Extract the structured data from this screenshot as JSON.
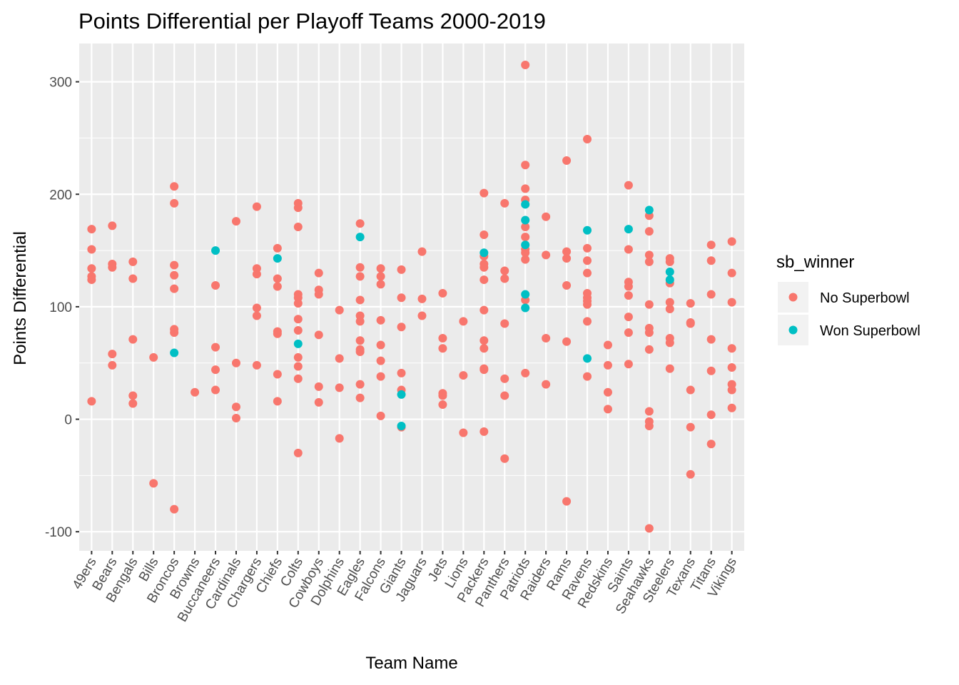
{
  "chart_data": {
    "type": "scatter",
    "title": "Points Differential per Playoff Teams 2000-2019",
    "xlabel": "Team Name",
    "ylabel": "Points Differential",
    "ylim": [
      -117,
      334
    ],
    "yticks": [
      -100,
      0,
      100,
      200,
      300
    ],
    "grid": true,
    "legend_position": "right",
    "categories": [
      "49ers",
      "Bears",
      "Bengals",
      "Bills",
      "Broncos",
      "Browns",
      "Buccaneers",
      "Cardinals",
      "Chargers",
      "Chiefs",
      "Colts",
      "Cowboys",
      "Dolphins",
      "Eagles",
      "Falcons",
      "Giants",
      "Jaguars",
      "Jets",
      "Lions",
      "Packers",
      "Panthers",
      "Patriots",
      "Raiders",
      "Rams",
      "Ravens",
      "Redskins",
      "Saints",
      "Seahawks",
      "Steelers",
      "Texans",
      "Titans",
      "Vikings"
    ],
    "legend": {
      "title": "sb_winner",
      "entries": [
        {
          "label": "No Superbowl",
          "color": "#F8766D"
        },
        {
          "label": "Won Superbowl",
          "color": "#00BFC4"
        }
      ]
    },
    "series": [
      {
        "name": "No Superbowl",
        "color": "#F8766D",
        "points": [
          [
            "49ers",
            169
          ],
          [
            "49ers",
            151
          ],
          [
            "49ers",
            134
          ],
          [
            "49ers",
            127
          ],
          [
            "49ers",
            124
          ],
          [
            "49ers",
            16
          ],
          [
            "Bears",
            172
          ],
          [
            "Bears",
            138
          ],
          [
            "Bears",
            135
          ],
          [
            "Bears",
            58
          ],
          [
            "Bears",
            48
          ],
          [
            "Bengals",
            140
          ],
          [
            "Bengals",
            125
          ],
          [
            "Bengals",
            71
          ],
          [
            "Bengals",
            21
          ],
          [
            "Bengals",
            14
          ],
          [
            "Bills",
            55
          ],
          [
            "Bills",
            -57
          ],
          [
            "Broncos",
            207
          ],
          [
            "Broncos",
            192
          ],
          [
            "Broncos",
            137
          ],
          [
            "Broncos",
            128
          ],
          [
            "Broncos",
            116
          ],
          [
            "Broncos",
            80
          ],
          [
            "Broncos",
            77
          ],
          [
            "Broncos",
            -80
          ],
          [
            "Browns",
            24
          ],
          [
            "Buccaneers",
            119
          ],
          [
            "Buccaneers",
            64
          ],
          [
            "Buccaneers",
            44
          ],
          [
            "Buccaneers",
            26
          ],
          [
            "Cardinals",
            176
          ],
          [
            "Cardinals",
            50
          ],
          [
            "Cardinals",
            11
          ],
          [
            "Cardinals",
            1
          ],
          [
            "Chargers",
            189
          ],
          [
            "Chargers",
            134
          ],
          [
            "Chargers",
            129
          ],
          [
            "Chargers",
            99
          ],
          [
            "Chargers",
            92
          ],
          [
            "Chargers",
            48
          ],
          [
            "Chiefs",
            152
          ],
          [
            "Chiefs",
            125
          ],
          [
            "Chiefs",
            118
          ],
          [
            "Chiefs",
            78
          ],
          [
            "Chiefs",
            76
          ],
          [
            "Chiefs",
            40
          ],
          [
            "Chiefs",
            16
          ],
          [
            "Colts",
            192
          ],
          [
            "Colts",
            188
          ],
          [
            "Colts",
            171
          ],
          [
            "Colts",
            111
          ],
          [
            "Colts",
            108
          ],
          [
            "Colts",
            103
          ],
          [
            "Colts",
            89
          ],
          [
            "Colts",
            79
          ],
          [
            "Colts",
            55
          ],
          [
            "Colts",
            47
          ],
          [
            "Colts",
            36
          ],
          [
            "Colts",
            -30
          ],
          [
            "Cowboys",
            130
          ],
          [
            "Cowboys",
            115
          ],
          [
            "Cowboys",
            111
          ],
          [
            "Cowboys",
            75
          ],
          [
            "Cowboys",
            29
          ],
          [
            "Cowboys",
            15
          ],
          [
            "Dolphins",
            97
          ],
          [
            "Dolphins",
            54
          ],
          [
            "Dolphins",
            28
          ],
          [
            "Dolphins",
            -17
          ],
          [
            "Eagles",
            174
          ],
          [
            "Eagles",
            135
          ],
          [
            "Eagles",
            127
          ],
          [
            "Eagles",
            106
          ],
          [
            "Eagles",
            92
          ],
          [
            "Eagles",
            87
          ],
          [
            "Eagles",
            70
          ],
          [
            "Eagles",
            62
          ],
          [
            "Eagles",
            60
          ],
          [
            "Eagles",
            31
          ],
          [
            "Eagles",
            19
          ],
          [
            "Falcons",
            134
          ],
          [
            "Falcons",
            127
          ],
          [
            "Falcons",
            120
          ],
          [
            "Falcons",
            88
          ],
          [
            "Falcons",
            66
          ],
          [
            "Falcons",
            52
          ],
          [
            "Falcons",
            38
          ],
          [
            "Falcons",
            3
          ],
          [
            "Giants",
            133
          ],
          [
            "Giants",
            108
          ],
          [
            "Giants",
            82
          ],
          [
            "Giants",
            41
          ],
          [
            "Giants",
            26
          ],
          [
            "Giants",
            -7
          ],
          [
            "Jaguars",
            149
          ],
          [
            "Jaguars",
            107
          ],
          [
            "Jaguars",
            92
          ],
          [
            "Jets",
            112
          ],
          [
            "Jets",
            72
          ],
          [
            "Jets",
            63
          ],
          [
            "Jets",
            23
          ],
          [
            "Jets",
            21
          ],
          [
            "Jets",
            13
          ],
          [
            "Lions",
            87
          ],
          [
            "Lions",
            39
          ],
          [
            "Lions",
            -12
          ],
          [
            "Packers",
            201
          ],
          [
            "Packers",
            164
          ],
          [
            "Packers",
            145
          ],
          [
            "Packers",
            138
          ],
          [
            "Packers",
            135
          ],
          [
            "Packers",
            124
          ],
          [
            "Packers",
            97
          ],
          [
            "Packers",
            70
          ],
          [
            "Packers",
            63
          ],
          [
            "Packers",
            45
          ],
          [
            "Packers",
            44
          ],
          [
            "Packers",
            -11
          ],
          [
            "Panthers",
            192
          ],
          [
            "Panthers",
            132
          ],
          [
            "Panthers",
            125
          ],
          [
            "Panthers",
            85
          ],
          [
            "Panthers",
            36
          ],
          [
            "Panthers",
            21
          ],
          [
            "Panthers",
            -35
          ],
          [
            "Patriots",
            315
          ],
          [
            "Patriots",
            226
          ],
          [
            "Patriots",
            205
          ],
          [
            "Patriots",
            195
          ],
          [
            "Patriots",
            171
          ],
          [
            "Patriots",
            162
          ],
          [
            "Patriots",
            151
          ],
          [
            "Patriots",
            148
          ],
          [
            "Patriots",
            142
          ],
          [
            "Patriots",
            106
          ],
          [
            "Patriots",
            41
          ],
          [
            "Raiders",
            180
          ],
          [
            "Raiders",
            146
          ],
          [
            "Raiders",
            72
          ],
          [
            "Raiders",
            31
          ],
          [
            "Rams",
            230
          ],
          [
            "Rams",
            149
          ],
          [
            "Rams",
            143
          ],
          [
            "Rams",
            119
          ],
          [
            "Rams",
            69
          ],
          [
            "Rams",
            -73
          ],
          [
            "Ravens",
            249
          ],
          [
            "Ravens",
            152
          ],
          [
            "Ravens",
            141
          ],
          [
            "Ravens",
            130
          ],
          [
            "Ravens",
            112
          ],
          [
            "Ravens",
            108
          ],
          [
            "Ravens",
            105
          ],
          [
            "Ravens",
            102
          ],
          [
            "Ravens",
            87
          ],
          [
            "Ravens",
            38
          ],
          [
            "Redskins",
            66
          ],
          [
            "Redskins",
            48
          ],
          [
            "Redskins",
            24
          ],
          [
            "Redskins",
            9
          ],
          [
            "Saints",
            208
          ],
          [
            "Saints",
            151
          ],
          [
            "Saints",
            122
          ],
          [
            "Saints",
            118
          ],
          [
            "Saints",
            110
          ],
          [
            "Saints",
            91
          ],
          [
            "Saints",
            77
          ],
          [
            "Saints",
            49
          ],
          [
            "Seahawks",
            181
          ],
          [
            "Seahawks",
            167
          ],
          [
            "Seahawks",
            146
          ],
          [
            "Seahawks",
            140
          ],
          [
            "Seahawks",
            102
          ],
          [
            "Seahawks",
            81
          ],
          [
            "Seahawks",
            77
          ],
          [
            "Seahawks",
            62
          ],
          [
            "Seahawks",
            7
          ],
          [
            "Seahawks",
            -2
          ],
          [
            "Seahawks",
            -6
          ],
          [
            "Seahawks",
            -97
          ],
          [
            "Steelers",
            143
          ],
          [
            "Steelers",
            140
          ],
          [
            "Steelers",
            121
          ],
          [
            "Steelers",
            104
          ],
          [
            "Steelers",
            98
          ],
          [
            "Steelers",
            72
          ],
          [
            "Steelers",
            68
          ],
          [
            "Steelers",
            45
          ],
          [
            "Texans",
            103
          ],
          [
            "Texans",
            86
          ],
          [
            "Texans",
            85
          ],
          [
            "Texans",
            26
          ],
          [
            "Texans",
            -7
          ],
          [
            "Texans",
            -49
          ],
          [
            "Titans",
            155
          ],
          [
            "Titans",
            141
          ],
          [
            "Titans",
            111
          ],
          [
            "Titans",
            71
          ],
          [
            "Titans",
            43
          ],
          [
            "Titans",
            4
          ],
          [
            "Titans",
            -22
          ],
          [
            "Vikings",
            158
          ],
          [
            "Vikings",
            130
          ],
          [
            "Vikings",
            104
          ],
          [
            "Vikings",
            63
          ],
          [
            "Vikings",
            46
          ],
          [
            "Vikings",
            31
          ],
          [
            "Vikings",
            26
          ],
          [
            "Vikings",
            10
          ]
        ]
      },
      {
        "name": "Won Superbowl",
        "color": "#00BFC4",
        "points": [
          [
            "Broncos",
            59
          ],
          [
            "Buccaneers",
            150
          ],
          [
            "Chiefs",
            143
          ],
          [
            "Colts",
            67
          ],
          [
            "Eagles",
            162
          ],
          [
            "Giants",
            22
          ],
          [
            "Giants",
            -6
          ],
          [
            "Packers",
            148
          ],
          [
            "Patriots",
            191
          ],
          [
            "Patriots",
            177
          ],
          [
            "Patriots",
            155
          ],
          [
            "Patriots",
            111
          ],
          [
            "Patriots",
            99
          ],
          [
            "Ravens",
            168
          ],
          [
            "Ravens",
            54
          ],
          [
            "Saints",
            169
          ],
          [
            "Seahawks",
            186
          ],
          [
            "Steelers",
            131
          ],
          [
            "Steelers",
            124
          ]
        ]
      }
    ]
  }
}
